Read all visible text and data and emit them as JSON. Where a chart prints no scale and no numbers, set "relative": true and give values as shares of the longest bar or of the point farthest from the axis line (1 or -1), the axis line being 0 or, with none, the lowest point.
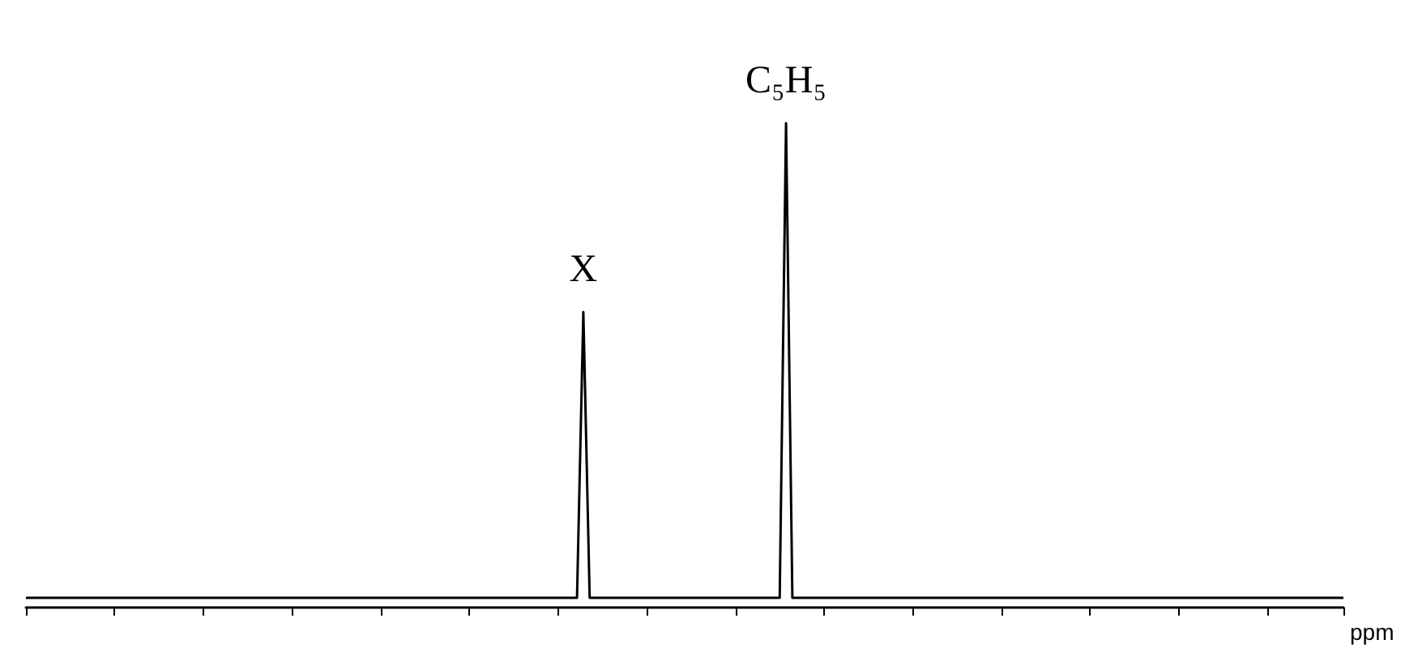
{
  "chart_data": {
    "type": "line",
    "relative": true,
    "xlabel": "ppm",
    "grid": false,
    "line_style": "solid",
    "categories": [
      null,
      null,
      null,
      null,
      null,
      null,
      null,
      null,
      null,
      null,
      null,
      null,
      null,
      null,
      null,
      null,
      null,
      null,
      null,
      null,
      null,
      null,
      null,
      null,
      null,
      null,
      null,
      null,
      null,
      null,
      null,
      null,
      null,
      null,
      null,
      null,
      null,
      null,
      null,
      null,
      null,
      null,
      null,
      null,
      null,
      null,
      null,
      null,
      null,
      null,
      null,
      null,
      null,
      null,
      null,
      null,
      null,
      null,
      null,
      null,
      null,
      null,
      null,
      null,
      null,
      null,
      null,
      null,
      null,
      null,
      null,
      null,
      null,
      null,
      null,
      null,
      null,
      null,
      null,
      null,
      null,
      null,
      null,
      null,
      null,
      null,
      null,
      null,
      null,
      null,
      null,
      null,
      null,
      null,
      null,
      null,
      null,
      null,
      null,
      null,
      null,
      null,
      null,
      null,
      null,
      null,
      null,
      null,
      null,
      null,
      null,
      null,
      null,
      null,
      null,
      null,
      null,
      null,
      null,
      null,
      null,
      null,
      null,
      null,
      null,
      null,
      null,
      null,
      null,
      null,
      null,
      null,
      null,
      null,
      null,
      null,
      null,
      null,
      null,
      null,
      null,
      null,
      null,
      null,
      null,
      null,
      null,
      null,
      null,
      null,
      null,
      null,
      null,
      null,
      null,
      null,
      null,
      null,
      null,
      null,
      null,
      null,
      null,
      null,
      null,
      null,
      null,
      null,
      null,
      null,
      null,
      null,
      null,
      null,
      null,
      null,
      null,
      null,
      null,
      null,
      null,
      null,
      null,
      null,
      null,
      null,
      null,
      null,
      null,
      null,
      null,
      null,
      null,
      null,
      null,
      null,
      null,
      null,
      null,
      null,
      null,
      null,
      null,
      null,
      null,
      null,
      null,
      null,
      null
    ],
    "series": [
      {
        "color": "#000000",
        "values": [
          0.02,
          0.02,
          0.02,
          0.02,
          0.02,
          0.02,
          0.02,
          0.02,
          0.02,
          0.02,
          0.02,
          0.02,
          0.02,
          0.02,
          0.02,
          0.02,
          0.02,
          0.02,
          0.02,
          0.02,
          0.02,
          0.02,
          0.02,
          0.02,
          0.02,
          0.02,
          0.02,
          0.02,
          0.02,
          0.02,
          0.02,
          0.02,
          0.02,
          0.02,
          0.02,
          0.02,
          0.02,
          0.02,
          0.02,
          0.02,
          0.02,
          0.02,
          0.02,
          0.02,
          0.02,
          0.02,
          0.02,
          0.02,
          0.02,
          0.02,
          0.02,
          0.02,
          0.02,
          0.02,
          0.02,
          0.02,
          0.02,
          0.02,
          0.02,
          0.02,
          0.02,
          0.02,
          0.02,
          0.02,
          0.02,
          0.02,
          0.02,
          0.02,
          0.02,
          0.02,
          0.02,
          0.02,
          0.02,
          0.02,
          0.02,
          0.02,
          0.02,
          0.02,
          0.02,
          0.02,
          0.02,
          0.02,
          0.02,
          0.02,
          0.02,
          0.02,
          0.02,
          0.02,
          0.61,
          0.02,
          0.02,
          0.02,
          0.02,
          0.02,
          0.02,
          0.02,
          0.02,
          0.02,
          0.02,
          0.02,
          0.02,
          0.02,
          0.02,
          0.02,
          0.02,
          0.02,
          0.02,
          0.02,
          0.02,
          0.02,
          0.02,
          0.02,
          0.02,
          0.02,
          0.02,
          0.02,
          0.02,
          0.02,
          0.02,
          0.02,
          1,
          0.02,
          0.02,
          0.02,
          0.02,
          0.02,
          0.02,
          0.02,
          0.02,
          0.02,
          0.02,
          0.02,
          0.02,
          0.02,
          0.02,
          0.02,
          0.02,
          0.02,
          0.02,
          0.02,
          0.02,
          0.02,
          0.02,
          0.02,
          0.02,
          0.02,
          0.02,
          0.02,
          0.02,
          0.02,
          0.02,
          0.02,
          0.02,
          0.02,
          0.02,
          0.02,
          0.02,
          0.02,
          0.02,
          0.02,
          0.02,
          0.02,
          0.02,
          0.02,
          0.02,
          0.02,
          0.02,
          0.02,
          0.02,
          0.02,
          0.02,
          0.02,
          0.02,
          0.02,
          0.02,
          0.02,
          0.02,
          0.02,
          0.02,
          0.02,
          0.02,
          0.02,
          0.02,
          0.02,
          0.02,
          0.02,
          0.02,
          0.02,
          0.02,
          0.02,
          0.02,
          0.02,
          0.02,
          0.02,
          0.02,
          0.02,
          0.02,
          0.02,
          0.02,
          0.02,
          0.02,
          0.02,
          0.02,
          0.02,
          0.02,
          0.02,
          0.02,
          0.02,
          0.02
        ]
      }
    ],
    "annotations": [
      {
        "text": "X",
        "y": 0.61
      },
      {
        "text": "C₅H₅",
        "y": 1
      }
    ]
  }
}
